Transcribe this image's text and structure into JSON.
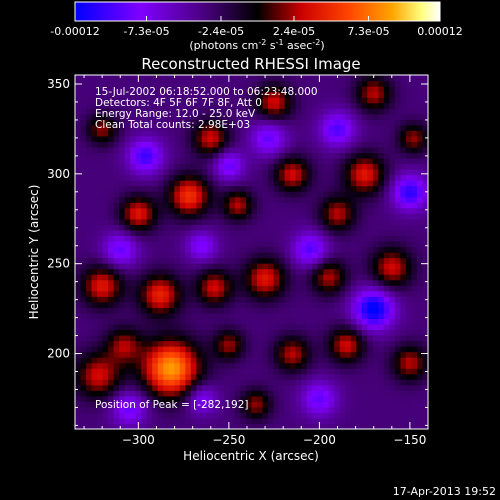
{
  "colorbar": {
    "tick_labels": [
      "-0.00012",
      "-7.3e-05",
      "-2.4e-05",
      "2.4e-05",
      "7.3e-05",
      "0.00012"
    ],
    "tick_values": [
      -0.00012,
      -7.3e-05,
      -2.4e-05,
      2.4e-05,
      7.3e-05,
      0.00012
    ],
    "unit_prefix": "(photons cm",
    "unit_exp1": "-2",
    "unit_mid": " s",
    "unit_exp2": "-1",
    "unit_suffix": " asec",
    "unit_exp3": "-2",
    "unit_close": ")",
    "colors": [
      "#0000ff",
      "#8000ff",
      "#4b0082",
      "#000000",
      "#cc0000",
      "#ff4500",
      "#ffa500",
      "#ffff80",
      "#ffffff"
    ]
  },
  "footer": {
    "timestamp": "17-Apr-2013 19:52"
  },
  "chart_data": {
    "type": "heatmap",
    "title": "Reconstructed RHESSI Image",
    "xlabel": "Heliocentric X (arcsec)",
    "ylabel": "Heliocentric Y (arcsec)",
    "xlim": [
      -335,
      -140
    ],
    "ylim": [
      158,
      355
    ],
    "xticks": [
      -300,
      -250,
      -200,
      -150
    ],
    "xtick_labels": [
      "−300",
      "−250",
      "−200",
      "−150"
    ],
    "yticks": [
      200,
      250,
      300,
      350
    ],
    "ytick_labels": [
      "200",
      "250",
      "300",
      "350"
    ],
    "annotations": [
      "15-Jul-2002 06:18:52.000 to 06:23:48.000",
      "Detectors: 4F 5F 6F 7F 8F, Att 0",
      "Energy Range: 12.0 - 25.0 keV",
      "Clean     Total counts: 2.98E+03"
    ],
    "peak_label": "Position of Peak = [-282,192]",
    "peak": [
      -282,
      192
    ],
    "blobs": [
      {
        "x": -282,
        "y": 192,
        "v": 1.0,
        "r": 11
      },
      {
        "x": -322,
        "y": 188,
        "v": 0.55,
        "r": 9
      },
      {
        "x": -308,
        "y": 205,
        "v": 0.45,
        "r": 7
      },
      {
        "x": -320,
        "y": 238,
        "v": 0.6,
        "r": 8
      },
      {
        "x": -288,
        "y": 233,
        "v": 0.65,
        "r": 8
      },
      {
        "x": -258,
        "y": 237,
        "v": 0.55,
        "r": 7
      },
      {
        "x": -230,
        "y": 242,
        "v": 0.6,
        "r": 8
      },
      {
        "x": -195,
        "y": 243,
        "v": 0.5,
        "r": 7
      },
      {
        "x": -160,
        "y": 248,
        "v": 0.55,
        "r": 8
      },
      {
        "x": -300,
        "y": 278,
        "v": 0.6,
        "r": 7
      },
      {
        "x": -272,
        "y": 288,
        "v": 0.7,
        "r": 8
      },
      {
        "x": -245,
        "y": 283,
        "v": 0.5,
        "r": 6
      },
      {
        "x": -215,
        "y": 300,
        "v": 0.55,
        "r": 7
      },
      {
        "x": -190,
        "y": 278,
        "v": 0.5,
        "r": 7
      },
      {
        "x": -175,
        "y": 300,
        "v": 0.6,
        "r": 8
      },
      {
        "x": -320,
        "y": 325,
        "v": 0.45,
        "r": 6
      },
      {
        "x": -260,
        "y": 320,
        "v": 0.55,
        "r": 7
      },
      {
        "x": -225,
        "y": 340,
        "v": 0.55,
        "r": 7
      },
      {
        "x": -170,
        "y": 345,
        "v": 0.5,
        "r": 7
      },
      {
        "x": -148,
        "y": 320,
        "v": 0.45,
        "r": 6
      },
      {
        "x": -215,
        "y": 200,
        "v": 0.5,
        "r": 7
      },
      {
        "x": -185,
        "y": 205,
        "v": 0.55,
        "r": 7
      },
      {
        "x": -150,
        "y": 195,
        "v": 0.5,
        "r": 7
      },
      {
        "x": -235,
        "y": 172,
        "v": 0.45,
        "r": 6
      },
      {
        "x": -250,
        "y": 205,
        "v": 0.45,
        "r": 6
      },
      {
        "x": -296,
        "y": 310,
        "v": -0.55,
        "r": 7
      },
      {
        "x": -250,
        "y": 305,
        "v": -0.45,
        "r": 6
      },
      {
        "x": -170,
        "y": 225,
        "v": -0.75,
        "r": 8
      },
      {
        "x": -150,
        "y": 290,
        "v": -0.6,
        "r": 7
      },
      {
        "x": -205,
        "y": 258,
        "v": -0.5,
        "r": 7
      },
      {
        "x": -228,
        "y": 320,
        "v": -0.45,
        "r": 7
      },
      {
        "x": -310,
        "y": 258,
        "v": -0.45,
        "r": 7
      },
      {
        "x": -265,
        "y": 260,
        "v": -0.4,
        "r": 6
      },
      {
        "x": -200,
        "y": 175,
        "v": -0.45,
        "r": 7
      },
      {
        "x": -305,
        "y": 170,
        "v": -0.45,
        "r": 7
      },
      {
        "x": -265,
        "y": 175,
        "v": -0.4,
        "r": 6
      },
      {
        "x": -190,
        "y": 325,
        "v": -0.5,
        "r": 7
      }
    ]
  }
}
